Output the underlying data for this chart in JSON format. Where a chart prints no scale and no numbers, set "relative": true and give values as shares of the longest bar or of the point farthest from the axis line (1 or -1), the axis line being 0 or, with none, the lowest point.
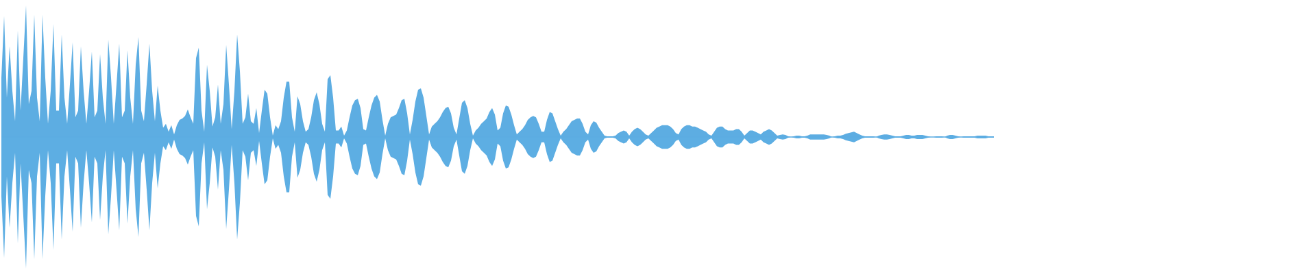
{
  "chart_data": {
    "type": "area",
    "relative": true,
    "ref_lines": [
      {
        "axis": "y",
        "value": 0,
        "color": "#5dade2"
      }
    ],
    "categories": [
      null,
      null,
      null,
      null,
      null,
      null,
      null,
      null,
      null,
      null,
      null,
      null,
      null,
      null,
      null,
      null,
      null,
      null,
      null,
      null,
      null,
      null,
      null,
      null,
      null,
      null,
      null,
      null,
      null,
      null,
      null,
      null,
      null,
      null,
      null,
      null,
      null,
      null,
      null,
      null,
      null,
      null,
      null,
      null,
      null,
      null,
      null,
      null,
      null,
      null,
      null,
      null,
      null,
      null,
      null,
      null,
      null,
      null,
      null,
      null,
      null,
      null,
      null,
      null,
      null,
      null,
      null,
      null,
      null,
      null,
      null,
      null,
      null,
      null,
      null,
      null,
      null,
      null,
      null,
      null,
      null,
      null,
      null,
      null,
      null,
      null,
      null,
      null,
      null,
      null,
      null,
      null,
      null,
      null,
      null,
      null,
      null,
      null,
      null,
      null,
      null,
      null,
      null,
      null,
      null,
      null,
      null,
      null,
      null,
      null,
      null,
      null,
      null,
      null,
      null,
      null,
      null,
      null,
      null,
      null,
      null,
      null,
      null,
      null,
      null,
      null,
      null,
      null,
      null,
      null,
      null,
      null,
      null,
      null,
      null,
      null,
      null,
      null,
      null,
      null,
      null,
      null,
      null,
      null,
      null,
      null,
      null,
      null,
      null,
      null,
      null,
      null,
      null,
      null,
      null,
      null,
      null,
      null,
      null,
      null,
      null,
      null,
      null,
      null,
      null,
      null,
      null,
      null,
      null,
      null,
      null,
      null,
      null,
      null,
      null,
      null,
      null,
      null,
      null,
      null,
      null,
      null,
      null,
      null,
      null,
      null,
      null,
      null,
      null,
      null,
      null,
      null,
      null,
      null,
      null,
      null,
      null,
      null,
      null,
      null,
      null,
      null,
      null,
      null,
      null,
      null,
      null,
      null,
      null,
      null,
      null,
      null,
      null,
      null,
      null,
      null,
      null,
      null,
      null,
      null,
      null,
      null,
      null,
      null,
      null,
      null,
      null,
      null,
      null,
      null,
      null,
      null,
      null,
      null,
      null,
      null,
      null,
      null,
      null,
      null,
      null,
      null,
      null,
      null,
      null,
      null,
      null,
      null,
      null,
      null,
      null,
      null,
      null,
      null,
      null,
      null,
      null,
      null,
      null,
      null,
      null,
      null,
      null,
      null,
      null,
      null,
      null,
      null,
      null,
      null,
      null,
      null,
      null,
      null,
      null,
      null,
      null,
      null,
      null,
      null,
      null,
      null,
      null,
      null,
      null,
      null,
      null,
      null,
      null,
      null,
      null,
      null,
      null,
      null,
      null,
      null,
      null,
      null,
      null,
      null,
      null,
      null,
      null,
      null,
      null,
      null,
      null,
      null,
      null,
      null,
      null,
      null,
      null,
      null,
      null,
      null,
      null,
      null,
      null,
      null,
      null,
      null,
      null,
      null,
      null,
      null,
      null,
      null,
      null,
      null,
      null,
      null,
      null,
      null,
      null,
      null,
      null,
      null,
      null,
      null,
      null,
      null,
      null,
      null,
      null,
      null,
      null,
      null,
      null,
      null,
      null,
      null,
      null,
      null,
      null,
      null,
      null,
      null,
      null,
      null,
      null,
      null,
      null,
      null,
      null,
      null,
      null,
      null,
      null,
      null,
      null,
      null,
      null,
      null,
      null,
      null,
      null,
      null,
      null,
      null,
      null,
      null,
      null,
      null,
      null,
      null,
      null,
      null,
      null,
      null,
      null,
      null,
      null,
      null,
      null,
      null,
      null,
      null,
      null,
      null,
      null,
      null,
      null,
      null,
      null,
      null,
      null,
      null,
      null,
      null,
      null,
      null,
      null,
      null,
      null,
      null,
      null,
      null,
      null,
      null,
      null,
      null,
      null,
      null,
      null,
      null,
      null,
      null,
      null,
      null,
      null,
      null,
      null,
      null,
      null,
      null,
      null,
      null,
      null,
      null,
      null,
      null,
      null,
      null,
      null,
      null,
      null,
      null,
      null,
      null,
      null,
      null,
      null,
      null,
      null,
      null,
      null,
      null,
      null,
      null,
      null,
      null,
      null,
      null,
      null,
      null,
      null,
      null,
      null,
      null,
      null,
      null,
      null,
      null,
      null,
      null,
      null,
      null,
      null,
      null
    ],
    "series": [
      {
        "color": "#5dade2",
        "values": [
          0.45,
          0.92,
          0.3,
          0.69,
          0.35,
          0.12,
          0.81,
          0.2,
          0.6,
          1.0,
          0.25,
          0.35,
          0.93,
          0.3,
          0.12,
          0.93,
          0.45,
          0.1,
          0.35,
          0.86,
          0.2,
          0.2,
          0.78,
          0.3,
          0.1,
          0.4,
          0.72,
          0.15,
          0.2,
          0.69,
          0.35,
          0.1,
          0.35,
          0.65,
          0.15,
          0.2,
          0.63,
          0.3,
          0.1,
          0.74,
          0.45,
          0.1,
          0.4,
          0.71,
          0.15,
          0.2,
          0.66,
          0.3,
          0.1,
          0.55,
          0.76,
          0.2,
          0.12,
          0.4,
          0.71,
          0.35,
          0.12,
          0.39,
          0.2,
          0.07,
          0.1,
          0.04,
          0.09,
          0.02,
          0.09,
          0.13,
          0.14,
          0.16,
          0.21,
          0.15,
          0.1,
          0.6,
          0.68,
          0.2,
          0.04,
          0.55,
          0.35,
          0.08,
          0.15,
          0.4,
          0.1,
          0.25,
          0.7,
          0.4,
          0.06,
          0.35,
          0.78,
          0.5,
          0.1,
          0.15,
          0.33,
          0.12,
          0.1,
          0.22,
          0.03,
          0.2,
          0.36,
          0.33,
          0.15,
          0.01,
          0.09,
          0.06,
          0.12,
          0.3,
          0.42,
          0.42,
          0.15,
          0.04,
          0.31,
          0.25,
          0.12,
          0.04,
          0.06,
          0.15,
          0.28,
          0.34,
          0.25,
          0.1,
          0.04,
          0.44,
          0.47,
          0.3,
          0.05,
          0.05,
          0.08,
          0.01,
          0.05,
          0.15,
          0.24,
          0.28,
          0.29,
          0.22,
          0.06,
          0.05,
          0.15,
          0.24,
          0.3,
          0.32,
          0.27,
          0.13,
          0.01,
          0.1,
          0.15,
          0.16,
          0.17,
          0.22,
          0.28,
          0.29,
          0.18,
          0.02,
          0.13,
          0.27,
          0.36,
          0.37,
          0.3,
          0.16,
          0.02,
          0.08,
          0.1,
          0.12,
          0.15,
          0.19,
          0.22,
          0.23,
          0.18,
          0.07,
          0.02,
          0.14,
          0.26,
          0.28,
          0.22,
          0.1,
          0.01,
          0.05,
          0.07,
          0.1,
          0.12,
          0.14,
          0.19,
          0.22,
          0.17,
          0.05,
          0.07,
          0.18,
          0.24,
          0.23,
          0.17,
          0.09,
          0.02,
          0.04,
          0.06,
          0.09,
          0.13,
          0.15,
          0.16,
          0.15,
          0.1,
          0.04,
          0.04,
          0.13,
          0.19,
          0.18,
          0.12,
          0.06,
          0.01,
          0.04,
          0.06,
          0.09,
          0.12,
          0.13,
          0.14,
          0.14,
          0.1,
          0.04,
          0.02,
          0.09,
          0.12,
          0.11,
          0.07,
          0.04,
          0.01,
          0.005,
          0.005,
          0.005,
          0.01,
          0.03,
          0.04,
          0.05,
          0.04,
          0.01,
          0.04,
          0.06,
          0.07,
          0.06,
          0.04,
          0.02,
          0.01,
          0.03,
          0.05,
          0.07,
          0.08,
          0.09,
          0.09,
          0.09,
          0.08,
          0.06,
          0.03,
          0.02,
          0.06,
          0.08,
          0.09,
          0.09,
          0.08,
          0.08,
          0.07,
          0.06,
          0.05,
          0.04,
          0.02,
          0.01,
          0.04,
          0.07,
          0.08,
          0.08,
          0.06,
          0.05,
          0.05,
          0.05,
          0.06,
          0.06,
          0.04,
          0.01,
          0.03,
          0.05,
          0.05,
          0.04,
          0.03,
          0.02,
          0.04,
          0.05,
          0.06,
          0.05,
          0.03,
          0.01,
          0.015,
          0.02,
          0.015,
          0.005,
          0,
          0.005,
          0.01,
          0.01,
          0.005,
          0.005,
          0.01,
          0.02,
          0.02,
          0.02,
          0.02,
          0.02,
          0.02,
          0.015,
          0.01,
          0,
          0.005,
          0.01,
          0.01,
          0.015,
          0.025,
          0.03,
          0.035,
          0.04,
          0.03,
          0.02,
          0.01,
          0.005,
          0.005,
          0.005,
          0.005,
          0,
          0.01,
          0.015,
          0.02,
          0.02,
          0.015,
          0.01,
          0.005,
          0.005,
          0.005,
          0.01,
          0.015,
          0.015,
          0.01,
          0.01,
          0.015,
          0.015,
          0.015,
          0.01,
          0.005,
          0,
          0,
          0.005,
          0.005,
          0.005,
          0,
          0.01,
          0.015,
          0.015,
          0.01,
          0.005,
          0,
          0.005,
          0.005,
          0.005,
          0.005,
          0.005,
          0.01,
          0.01,
          0.01,
          0.01,
          0.005,
          0.005,
          0.005,
          null,
          null,
          null,
          null,
          null,
          null,
          null,
          null,
          null,
          null,
          null,
          null,
          null,
          null,
          null,
          null,
          null,
          null,
          null,
          null,
          null,
          null,
          null,
          null,
          null,
          null,
          null,
          null,
          null,
          null,
          null,
          null,
          null,
          null,
          null,
          null,
          null,
          null,
          null,
          null,
          null,
          null,
          null,
          null,
          null,
          null,
          null,
          null,
          null,
          null,
          null,
          null,
          null,
          null,
          null,
          null,
          null,
          null,
          null,
          null,
          null,
          null,
          null,
          null,
          null,
          null,
          null,
          null,
          null,
          null,
          null,
          null,
          null,
          null,
          null,
          null,
          null,
          null,
          null,
          null,
          null,
          null,
          null,
          null,
          null,
          null,
          null,
          null,
          null,
          null,
          null,
          null,
          null,
          null,
          null,
          null,
          null,
          null,
          null,
          null,
          null,
          null,
          null,
          null,
          null,
          null,
          null,
          null,
          null,
          null,
          null,
          null,
          null,
          null,
          null,
          null,
          null
        ]
      },
      {
        "color": "#5daee3",
        "values": [
          -0.45,
          -0.92,
          -0.3,
          -0.69,
          -0.35,
          -0.12,
          -0.81,
          -0.2,
          -0.6,
          -1.0,
          -0.25,
          -0.35,
          -0.93,
          -0.3,
          -0.12,
          -0.93,
          -0.45,
          -0.1,
          -0.35,
          -0.86,
          -0.2,
          -0.2,
          -0.78,
          -0.3,
          -0.1,
          -0.4,
          -0.72,
          -0.15,
          -0.2,
          -0.69,
          -0.35,
          -0.1,
          -0.35,
          -0.65,
          -0.15,
          -0.2,
          -0.63,
          -0.3,
          -0.1,
          -0.74,
          -0.45,
          -0.1,
          -0.4,
          -0.71,
          -0.15,
          -0.2,
          -0.66,
          -0.3,
          -0.1,
          -0.55,
          -0.76,
          -0.2,
          -0.12,
          -0.4,
          -0.71,
          -0.35,
          -0.12,
          -0.39,
          -0.2,
          -0.07,
          -0.1,
          -0.04,
          -0.09,
          -0.02,
          -0.09,
          -0.13,
          -0.14,
          -0.16,
          -0.21,
          -0.15,
          -0.1,
          -0.6,
          -0.68,
          -0.2,
          -0.04,
          -0.55,
          -0.35,
          -0.08,
          -0.15,
          -0.4,
          -0.1,
          -0.25,
          -0.7,
          -0.4,
          -0.06,
          -0.35,
          -0.78,
          -0.5,
          -0.1,
          -0.15,
          -0.33,
          -0.12,
          -0.1,
          -0.22,
          -0.03,
          -0.2,
          -0.36,
          -0.33,
          -0.15,
          -0.01,
          -0.09,
          -0.06,
          -0.12,
          -0.3,
          -0.42,
          -0.42,
          -0.15,
          -0.04,
          -0.31,
          -0.25,
          -0.12,
          -0.04,
          -0.06,
          -0.15,
          -0.28,
          -0.34,
          -0.25,
          -0.1,
          -0.04,
          -0.44,
          -0.47,
          -0.3,
          -0.05,
          -0.05,
          -0.08,
          -0.01,
          -0.05,
          -0.15,
          -0.24,
          -0.28,
          -0.29,
          -0.22,
          -0.06,
          -0.05,
          -0.15,
          -0.24,
          -0.3,
          -0.32,
          -0.27,
          -0.13,
          -0.01,
          -0.1,
          -0.15,
          -0.16,
          -0.17,
          -0.22,
          -0.28,
          -0.29,
          -0.18,
          -0.02,
          -0.13,
          -0.27,
          -0.36,
          -0.37,
          -0.3,
          -0.16,
          -0.02,
          -0.08,
          -0.1,
          -0.12,
          -0.15,
          -0.19,
          -0.22,
          -0.23,
          -0.18,
          -0.07,
          -0.02,
          -0.14,
          -0.26,
          -0.28,
          -0.22,
          -0.1,
          -0.01,
          -0.05,
          -0.07,
          -0.1,
          -0.12,
          -0.14,
          -0.19,
          -0.22,
          -0.17,
          -0.05,
          -0.07,
          -0.18,
          -0.24,
          -0.23,
          -0.17,
          -0.09,
          -0.02,
          -0.04,
          -0.06,
          -0.09,
          -0.13,
          -0.15,
          -0.16,
          -0.15,
          -0.1,
          -0.04,
          -0.04,
          -0.13,
          -0.19,
          -0.18,
          -0.12,
          -0.06,
          -0.01,
          -0.04,
          -0.06,
          -0.09,
          -0.12,
          -0.13,
          -0.14,
          -0.14,
          -0.1,
          -0.04,
          -0.02,
          -0.09,
          -0.12,
          -0.11,
          -0.07,
          -0.04,
          -0.01,
          -0.005,
          -0.005,
          -0.005,
          -0.01,
          -0.03,
          -0.04,
          -0.05,
          -0.04,
          -0.01,
          -0.04,
          -0.06,
          -0.07,
          -0.06,
          -0.04,
          -0.02,
          -0.01,
          -0.03,
          -0.05,
          -0.07,
          -0.08,
          -0.09,
          -0.09,
          -0.09,
          -0.08,
          -0.06,
          -0.03,
          -0.02,
          -0.06,
          -0.08,
          -0.09,
          -0.09,
          -0.08,
          -0.08,
          -0.07,
          -0.06,
          -0.05,
          -0.04,
          -0.02,
          -0.01,
          -0.04,
          -0.07,
          -0.08,
          -0.08,
          -0.06,
          -0.05,
          -0.05,
          -0.05,
          -0.06,
          -0.06,
          -0.04,
          -0.01,
          -0.03,
          -0.05,
          -0.05,
          -0.04,
          -0.03,
          -0.02,
          -0.04,
          -0.05,
          -0.06,
          -0.05,
          -0.03,
          -0.01,
          -0.015,
          -0.02,
          -0.015,
          -0.005,
          0,
          -0.005,
          -0.01,
          -0.01,
          -0.005,
          -0.005,
          -0.01,
          -0.02,
          -0.02,
          -0.02,
          -0.02,
          -0.02,
          -0.02,
          -0.015,
          -0.01,
          0,
          -0.005,
          -0.01,
          -0.01,
          -0.015,
          -0.025,
          -0.03,
          -0.035,
          -0.04,
          -0.03,
          -0.02,
          -0.01,
          -0.005,
          -0.005,
          -0.005,
          -0.005,
          0,
          -0.01,
          -0.015,
          -0.02,
          -0.02,
          -0.015,
          -0.01,
          -0.005,
          -0.005,
          -0.005,
          -0.01,
          -0.015,
          -0.015,
          -0.01,
          -0.01,
          -0.015,
          -0.015,
          -0.015,
          -0.01,
          -0.005,
          0,
          0,
          -0.005,
          -0.005,
          -0.005,
          0,
          -0.01,
          -0.015,
          -0.015,
          -0.01,
          -0.005,
          0,
          -0.005,
          -0.005,
          -0.005,
          -0.005,
          -0.005,
          -0.01,
          -0.01,
          -0.01,
          -0.01,
          -0.005,
          -0.005,
          -0.005,
          null,
          null,
          null,
          null,
          null,
          null,
          null,
          null,
          null,
          null,
          null,
          null,
          null,
          null,
          null,
          null,
          null,
          null,
          null,
          null,
          null,
          null,
          null,
          null,
          null,
          null,
          null,
          null,
          null,
          null,
          null,
          null,
          null,
          null,
          null,
          null,
          null,
          null,
          null,
          null,
          null,
          null,
          null,
          null,
          null,
          null,
          null,
          null,
          null,
          null,
          null,
          null,
          null,
          null,
          null,
          null,
          null,
          null,
          null,
          null,
          null,
          null,
          null,
          null,
          null,
          null,
          null,
          null,
          null,
          null,
          null,
          null,
          null,
          null,
          null,
          null,
          null,
          null,
          null,
          null,
          null,
          null,
          null,
          null,
          null,
          null,
          null,
          null,
          null,
          null,
          null,
          null,
          null,
          null,
          null,
          null,
          null,
          null,
          null,
          null,
          null,
          null,
          null,
          null,
          null,
          null,
          null,
          null,
          null,
          null,
          null,
          null,
          null,
          null,
          null,
          null,
          null
        ]
      }
    ]
  }
}
